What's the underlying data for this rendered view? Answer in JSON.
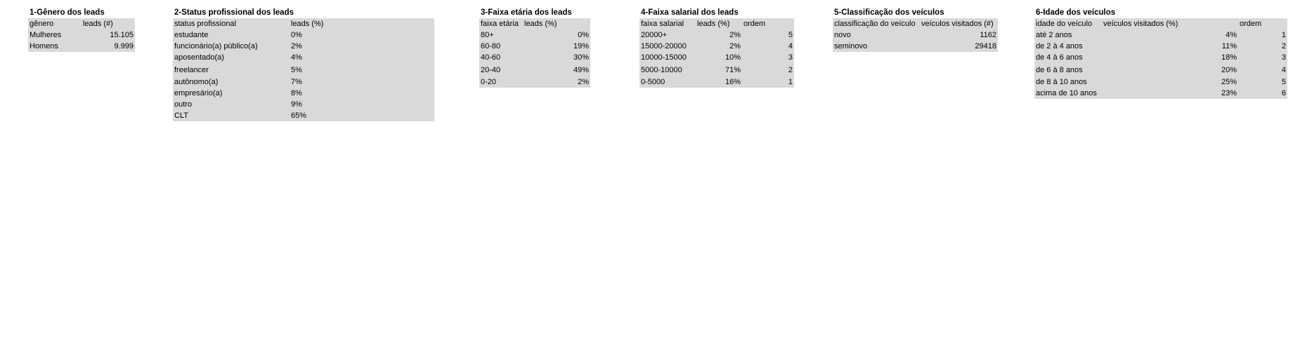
{
  "tables": {
    "genero": {
      "title": "1-Gênero dos leads",
      "headers": [
        "gênero",
        "leads (#)"
      ],
      "rows": [
        [
          "Mulheres",
          "15.105"
        ],
        [
          "Homens",
          "9.999"
        ]
      ]
    },
    "status": {
      "title": "2-Status profissional dos leads",
      "headers": [
        "status profissional",
        "leads (%)"
      ],
      "rows": [
        [
          "estudante",
          "0%"
        ],
        [
          "funcionário(a) público(a)",
          "2%"
        ],
        [
          "aposentado(a)",
          "4%"
        ],
        [
          "freelancer",
          "5%"
        ],
        [
          "autônomo(a)",
          "7%"
        ],
        [
          "empresário(a)",
          "8%"
        ],
        [
          "outro",
          "9%"
        ],
        [
          "CLT",
          "65%"
        ]
      ]
    },
    "faixa_etaria": {
      "title": "3-Faixa etária dos leads",
      "headers": [
        "faixa etária",
        "leads (%)"
      ],
      "rows": [
        [
          "80+",
          "0%"
        ],
        [
          "60-80",
          "19%"
        ],
        [
          "40-60",
          "30%"
        ],
        [
          "20-40",
          "49%"
        ],
        [
          "0-20",
          "2%"
        ]
      ]
    },
    "faixa_salarial": {
      "title": "4-Faixa salarial dos leads",
      "headers": [
        "faixa salarial",
        "leads (%)",
        "ordem"
      ],
      "rows": [
        [
          "20000+",
          "2%",
          "5"
        ],
        [
          "15000-20000",
          "2%",
          "4"
        ],
        [
          "10000-15000",
          "10%",
          "3"
        ],
        [
          "5000-10000",
          "71%",
          "2"
        ],
        [
          "0-5000",
          "16%",
          "1"
        ]
      ]
    },
    "classificacao": {
      "title": "5-Classificação dos veículos",
      "headers": [
        "classificação do veículo",
        "veículos visitados (#)"
      ],
      "rows": [
        [
          "novo",
          "1162"
        ],
        [
          "seminovo",
          "29418"
        ]
      ]
    },
    "idade_veiculos": {
      "title": "6-Idade dos veículos",
      "headers": [
        "idade do veículo",
        "veículos visitados (%)",
        "ordem"
      ],
      "rows": [
        [
          "até 2 anos",
          "4%",
          "1"
        ],
        [
          "de 2 à 4 anos",
          "11%",
          "2"
        ],
        [
          "de 4 à 6 anos",
          "18%",
          "3"
        ],
        [
          "de 6 à 8 anos",
          "20%",
          "4"
        ],
        [
          "de 8 à 10 anos",
          "25%",
          "5"
        ],
        [
          "acima de 10 anos",
          "23%",
          "6"
        ]
      ]
    }
  }
}
